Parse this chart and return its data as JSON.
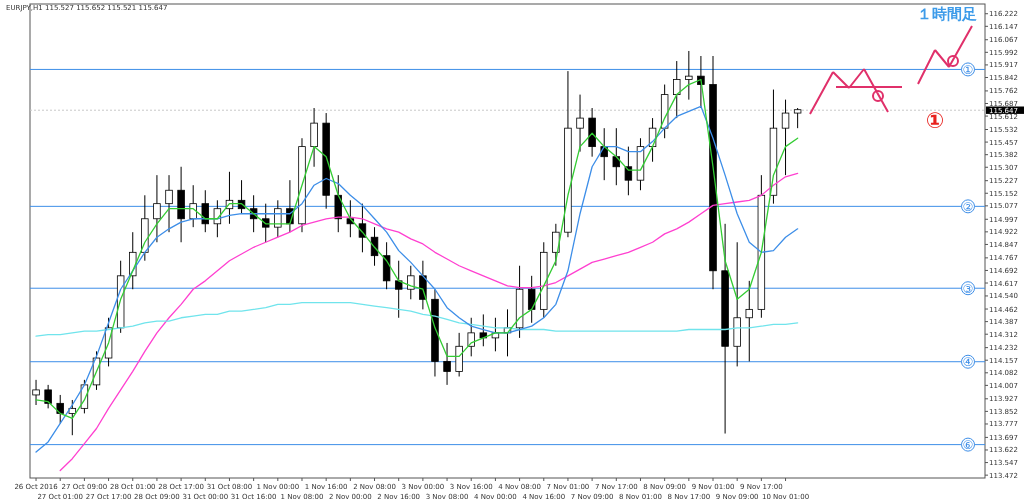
{
  "chart_data": {
    "type": "candlestick",
    "title": "EURJPY,H1 115.527 115.652 115.521 115.647",
    "annotations": [
      "１時間足",
      "①"
    ],
    "categories": [
      "26 Oct 2016",
      null,
      "27 Oct 01:00",
      null,
      "27 Oct 09:00",
      null,
      "27 Oct 17:00",
      null,
      "28 Oct 01:00",
      null,
      "28 Oct 09:00",
      null,
      "28 Oct 17:00",
      null,
      "31 Oct 00:00",
      null,
      "31 Oct 08:00",
      null,
      "31 Oct 16:00",
      null,
      "1 Nov 00:00",
      null,
      "1 Nov 08:00",
      null,
      "1 Nov 16:00",
      null,
      "2 Nov 00:00",
      null,
      "2 Nov 08:00",
      null,
      "2 Nov 16:00",
      null,
      "3 Nov 00:00",
      null,
      "3 Nov 08:00",
      null,
      "3 Nov 16:00",
      null,
      "4 Nov 00:00",
      null,
      "4 Nov 08:00",
      null,
      "4 Nov 16:00",
      null,
      "7 Nov 01:00",
      null,
      "7 Nov 09:00",
      null,
      "7 Nov 17:00",
      null,
      "8 Nov 01:00",
      null,
      "8 Nov 09:00",
      null,
      "8 Nov 17:00",
      null,
      "9 Nov 01:00",
      null,
      "9 Nov 09:00",
      null,
      "9 Nov 17:00",
      null,
      "10 Nov 01:00",
      null,
      null,
      null,
      null,
      null,
      null,
      null,
      null,
      null,
      null,
      null,
      null,
      null,
      null,
      null,
      null
    ],
    "ohlc": [
      [
        113.95,
        114.04,
        113.89,
        113.98
      ],
      [
        113.98,
        114.01,
        113.87,
        113.9
      ],
      [
        113.9,
        113.95,
        113.78,
        113.84
      ],
      [
        113.84,
        113.92,
        113.71,
        113.87
      ],
      [
        113.87,
        114.04,
        113.84,
        114.01
      ],
      [
        114.01,
        114.21,
        113.98,
        114.17
      ],
      [
        114.17,
        114.41,
        114.12,
        114.35
      ],
      [
        114.35,
        114.75,
        114.32,
        114.66
      ],
      [
        114.66,
        114.92,
        114.58,
        114.8
      ],
      [
        114.8,
        115.14,
        114.75,
        115.0
      ],
      [
        115.0,
        115.26,
        114.86,
        115.09
      ],
      [
        115.09,
        115.26,
        114.92,
        115.17
      ],
      [
        115.17,
        115.31,
        114.86,
        115.0
      ],
      [
        115.0,
        115.2,
        114.95,
        115.09
      ],
      [
        115.09,
        115.17,
        114.92,
        114.97
      ],
      [
        114.97,
        115.11,
        114.89,
        115.06
      ],
      [
        115.06,
        115.28,
        114.97,
        115.11
      ],
      [
        115.11,
        115.23,
        115.03,
        115.06
      ],
      [
        115.06,
        115.14,
        114.92,
        115.0
      ],
      [
        115.0,
        115.09,
        114.86,
        114.95
      ],
      [
        114.95,
        115.11,
        114.89,
        115.06
      ],
      [
        115.06,
        115.23,
        114.92,
        114.97
      ],
      [
        114.97,
        115.48,
        114.92,
        115.43
      ],
      [
        115.43,
        115.66,
        115.31,
        115.57
      ],
      [
        115.57,
        115.63,
        115.06,
        115.14
      ],
      [
        115.14,
        115.26,
        114.92,
        115.0
      ],
      [
        115.0,
        115.11,
        114.89,
        114.97
      ],
      [
        114.97,
        115.09,
        114.8,
        114.89
      ],
      [
        114.89,
        114.95,
        114.72,
        114.78
      ],
      [
        114.78,
        114.86,
        114.58,
        114.63
      ],
      [
        114.63,
        114.75,
        114.41,
        114.58
      ],
      [
        114.58,
        114.72,
        114.52,
        114.66
      ],
      [
        114.66,
        114.75,
        114.46,
        114.52
      ],
      [
        114.52,
        114.58,
        114.06,
        114.15
      ],
      [
        114.15,
        114.26,
        114.01,
        114.09
      ],
      [
        114.09,
        114.32,
        114.06,
        114.24
      ],
      [
        114.24,
        114.41,
        114.18,
        114.32
      ],
      [
        114.32,
        114.43,
        114.24,
        114.29
      ],
      [
        114.29,
        114.41,
        114.21,
        114.32
      ],
      [
        114.32,
        114.46,
        114.18,
        114.35
      ],
      [
        114.35,
        114.72,
        114.29,
        114.58
      ],
      [
        114.58,
        114.66,
        114.38,
        114.46
      ],
      [
        114.46,
        114.86,
        114.41,
        114.8
      ],
      [
        114.8,
        114.97,
        114.72,
        114.92
      ],
      [
        114.92,
        115.88,
        114.89,
        115.54
      ],
      [
        115.54,
        115.74,
        115.4,
        115.6
      ],
      [
        115.6,
        115.66,
        115.37,
        115.43
      ],
      [
        115.43,
        115.54,
        115.23,
        115.37
      ],
      [
        115.37,
        115.54,
        115.2,
        115.31
      ],
      [
        115.31,
        115.43,
        115.14,
        115.23
      ],
      [
        115.23,
        115.48,
        115.17,
        115.43
      ],
      [
        115.43,
        115.6,
        115.34,
        115.54
      ],
      [
        115.54,
        115.8,
        115.48,
        115.74
      ],
      [
        115.74,
        115.94,
        115.6,
        115.83
      ],
      [
        115.83,
        116.0,
        115.71,
        115.85
      ],
      [
        115.85,
        115.97,
        115.66,
        115.8
      ],
      [
        115.8,
        115.97,
        114.58,
        114.69
      ],
      [
        114.69,
        114.97,
        113.72,
        114.24
      ],
      [
        114.24,
        114.86,
        114.12,
        114.41
      ],
      [
        114.41,
        114.63,
        114.15,
        114.46
      ],
      [
        114.46,
        115.26,
        114.41,
        115.14
      ],
      [
        115.14,
        115.77,
        115.09,
        115.54
      ],
      [
        115.54,
        115.71,
        115.26,
        115.63
      ],
      [
        115.63,
        115.66,
        115.54,
        115.65
      ],
      null,
      null,
      null,
      null,
      null,
      null,
      null,
      null,
      null,
      null,
      null,
      null,
      null,
      null,
      null
    ],
    "series": [
      {
        "type": "line",
        "color": "#ff40d0",
        "values": [
          null,
          null,
          113.5,
          113.57,
          113.66,
          113.75,
          113.87,
          113.98,
          114.09,
          114.21,
          114.32,
          114.41,
          114.49,
          114.58,
          114.63,
          114.69,
          114.75,
          114.79,
          114.83,
          114.86,
          114.89,
          114.92,
          114.96,
          114.98,
          115.0,
          115.01,
          115.01,
          115.0,
          114.97,
          114.94,
          114.92,
          114.88,
          114.85,
          114.8,
          114.76,
          114.72,
          114.69,
          114.66,
          114.63,
          114.6,
          114.59,
          114.59,
          114.6,
          114.62,
          114.66,
          114.7,
          114.74,
          114.76,
          114.78,
          114.8,
          114.83,
          114.86,
          114.91,
          114.94,
          114.98,
          115.03,
          115.08,
          115.09,
          115.1,
          115.11,
          115.14,
          115.2,
          115.25,
          115.27,
          null,
          null,
          null,
          null,
          null,
          null,
          null,
          null,
          null,
          null,
          null,
          null,
          null,
          null,
          null
        ]
      },
      {
        "type": "line",
        "color": "#70e4ec",
        "values": [
          114.3,
          114.31,
          114.31,
          114.32,
          114.33,
          114.33,
          114.34,
          114.35,
          114.36,
          114.38,
          114.39,
          114.39,
          114.41,
          114.42,
          114.43,
          114.43,
          114.45,
          114.45,
          114.46,
          114.47,
          114.49,
          114.49,
          114.5,
          114.5,
          114.5,
          114.5,
          114.5,
          114.49,
          114.48,
          114.47,
          114.46,
          114.45,
          114.43,
          114.42,
          114.4,
          114.38,
          114.37,
          114.36,
          114.35,
          114.35,
          114.34,
          114.34,
          114.34,
          114.33,
          114.33,
          114.33,
          114.33,
          114.33,
          114.33,
          114.33,
          114.33,
          114.33,
          114.33,
          114.33,
          114.34,
          114.34,
          114.34,
          114.34,
          114.35,
          114.35,
          114.36,
          114.37,
          114.37,
          114.38,
          null,
          null,
          null,
          null,
          null,
          null,
          null,
          null,
          null,
          null,
          null,
          null,
          null,
          null,
          null
        ]
      },
      {
        "type": "line",
        "color": "#3d8ee8",
        "values": [
          113.61,
          113.67,
          113.78,
          113.89,
          114.01,
          114.18,
          114.38,
          114.58,
          114.69,
          114.8,
          114.89,
          114.94,
          114.98,
          115.0,
          115.0,
          115.0,
          115.02,
          115.03,
          115.03,
          115.03,
          115.03,
          115.03,
          115.09,
          115.2,
          115.24,
          115.21,
          115.14,
          115.08,
          115.0,
          114.92,
          114.81,
          114.74,
          114.66,
          114.58,
          114.47,
          114.41,
          114.36,
          114.34,
          114.32,
          114.32,
          114.34,
          114.36,
          114.41,
          114.49,
          114.69,
          115.03,
          115.31,
          115.43,
          115.43,
          115.4,
          115.4,
          115.46,
          115.54,
          115.61,
          115.64,
          115.67,
          115.48,
          115.26,
          115.03,
          114.86,
          114.8,
          114.81,
          114.89,
          114.94,
          null,
          null,
          null,
          null,
          null,
          null,
          null,
          null,
          null,
          null,
          null,
          null,
          null,
          null,
          null
        ]
      },
      {
        "type": "line",
        "color": "#33cc33",
        "values": [
          113.92,
          113.91,
          113.84,
          113.81,
          113.92,
          114.09,
          114.26,
          114.52,
          114.69,
          114.86,
          114.97,
          115.06,
          115.06,
          115.06,
          115.0,
          115.0,
          115.09,
          115.09,
          115.03,
          114.97,
          114.97,
          114.97,
          115.2,
          115.43,
          115.37,
          115.14,
          115.0,
          114.92,
          114.83,
          114.75,
          114.63,
          114.6,
          114.58,
          114.35,
          114.18,
          114.18,
          114.26,
          114.29,
          114.32,
          114.32,
          114.41,
          114.46,
          114.6,
          114.75,
          115.14,
          115.43,
          115.51,
          115.43,
          115.37,
          115.29,
          115.29,
          115.43,
          115.6,
          115.74,
          115.8,
          115.83,
          115.31,
          114.75,
          114.52,
          114.58,
          114.8,
          115.26,
          115.43,
          115.48,
          null,
          null,
          null,
          null,
          null,
          null,
          null,
          null,
          null,
          null,
          null,
          null,
          null,
          null,
          null
        ]
      }
    ],
    "ylim": [
      113.455,
      116.28
    ],
    "yticks": [
      116.222,
      116.147,
      116.067,
      115.992,
      115.917,
      115.842,
      115.762,
      115.687,
      115.612,
      115.532,
      115.457,
      115.382,
      115.307,
      115.227,
      115.152,
      115.077,
      114.997,
      114.922,
      114.847,
      114.767,
      114.692,
      114.617,
      {
        "value": 114.54,
        "label": "114.540"
      },
      114.462,
      114.387,
      114.312,
      114.232,
      114.157,
      114.082,
      114.007,
      113.927,
      113.852,
      113.777,
      113.697,
      113.622,
      113.547,
      113.472
    ],
    "ref_lines": [
      {
        "axis": "y",
        "value": 115.89,
        "label": "①",
        "color": "#3d8ee8",
        "line_style": "solid"
      },
      {
        "axis": "y",
        "value": 115.074,
        "label": "②",
        "color": "#3d8ee8",
        "line_style": "solid"
      },
      {
        "axis": "y",
        "value": 114.586,
        "label": "③",
        "color": "#3d8ee8",
        "line_style": "solid"
      },
      {
        "axis": "y",
        "value": 114.148,
        "label": "④",
        "color": "#3d8ee8",
        "line_style": "solid"
      },
      {
        "axis": "y",
        "value": 113.654,
        "label": "⑥",
        "color": "#3d8ee8",
        "line_style": "solid"
      },
      {
        "axis": "y",
        "value": 115.647,
        "label": "115.647",
        "color": "#c8c8c8",
        "line_style": "dotted"
      }
    ]
  }
}
